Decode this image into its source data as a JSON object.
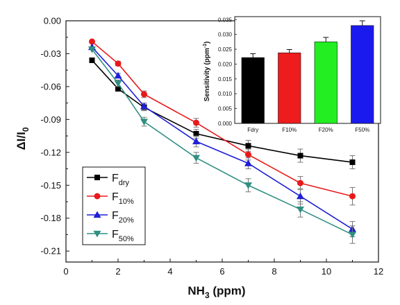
{
  "chart_data": [
    {
      "type": "line",
      "xlabel": "NH",
      "xlabel_sub": "3",
      "xlabel_unit": " (ppm)",
      "ylabel": "ΔI/I",
      "ylabel_sub": "0",
      "xlim": [
        0,
        12
      ],
      "ylim": [
        -0.22,
        0.0
      ],
      "xticks": [
        0,
        2,
        4,
        6,
        8,
        10,
        12
      ],
      "yticks": [
        0.0,
        -0.03,
        -0.06,
        -0.09,
        -0.12,
        -0.15,
        -0.18,
        -0.21
      ],
      "ytick_labels": [
        "0.00",
        "-0.03",
        "-0.06",
        "-0.09",
        "-0.12",
        "-0.15",
        "-0.18",
        "-0.21"
      ],
      "legend_position": "bottom-left",
      "series": [
        {
          "name": "F",
          "sub": "dry",
          "color": "#000000",
          "marker": "square",
          "x": [
            1,
            2,
            3,
            5,
            7,
            9,
            11
          ],
          "y": [
            -0.036,
            -0.062,
            -0.079,
            -0.103,
            -0.114,
            -0.123,
            -0.129
          ],
          "err": [
            0,
            0.002,
            0.003,
            0.004,
            0.005,
            0.006,
            0.006
          ]
        },
        {
          "name": "F",
          "sub": "10%",
          "color": "#e8191b",
          "marker": "circle",
          "x": [
            1,
            2,
            3,
            5,
            7,
            9,
            11
          ],
          "y": [
            -0.019,
            -0.039,
            -0.067,
            -0.093,
            -0.122,
            -0.148,
            -0.16
          ],
          "err": [
            0,
            0.002,
            0.003,
            0.004,
            0.005,
            0.006,
            0.008
          ]
        },
        {
          "name": "F",
          "sub": "20%",
          "color": "#1f1fd6",
          "marker": "triangle-up",
          "x": [
            1,
            2,
            3,
            5,
            7,
            9,
            11
          ],
          "y": [
            -0.024,
            -0.05,
            -0.078,
            -0.11,
            -0.13,
            -0.16,
            -0.19
          ],
          "err": [
            0,
            0.002,
            0.003,
            0.005,
            0.005,
            0.007,
            0.007
          ]
        },
        {
          "name": "F",
          "sub": "50%",
          "color": "#2f8f82",
          "marker": "triangle-down",
          "x": [
            1,
            2,
            3,
            5,
            7,
            9,
            11
          ],
          "y": [
            -0.026,
            -0.057,
            -0.092,
            -0.125,
            -0.15,
            -0.172,
            -0.195
          ],
          "err": [
            0,
            0.003,
            0.004,
            0.005,
            0.006,
            0.007,
            0.008
          ]
        }
      ]
    },
    {
      "type": "bar",
      "ylabel": "Sensitivity (ppm",
      "ylabel_sup": "-1",
      "ylabel_close": ")",
      "ylim": [
        0,
        0.036
      ],
      "yticks": [
        0.0,
        0.005,
        0.01,
        0.015,
        0.02,
        0.025,
        0.03,
        0.035
      ],
      "ytick_labels": [
        "0.000",
        "0.005",
        "0.010",
        "0.015",
        "0.020",
        "0.025",
        "0.030",
        "0.035"
      ],
      "categories": [
        "Fdry",
        "F10%",
        "F20%",
        "F50%"
      ],
      "values": [
        0.0222,
        0.0238,
        0.0275,
        0.033
      ],
      "errors": [
        0.0013,
        0.0011,
        0.0015,
        0.0016
      ],
      "colors": [
        "#000000",
        "#ee1c1c",
        "#22ee22",
        "#1a1aee"
      ]
    }
  ]
}
